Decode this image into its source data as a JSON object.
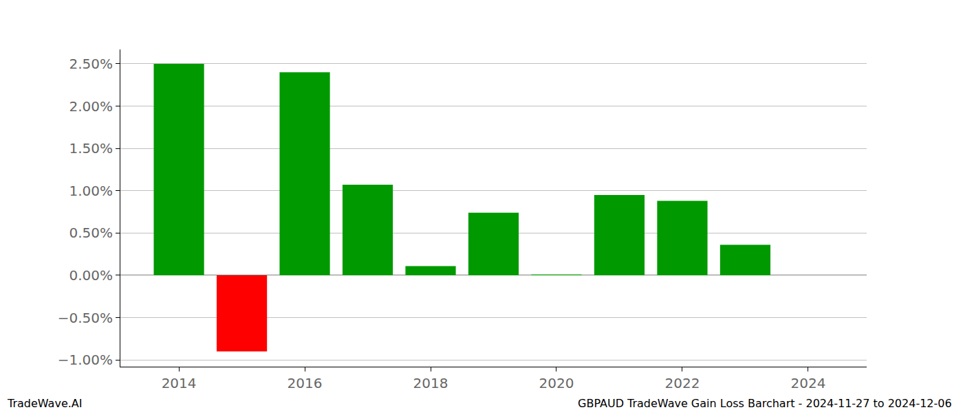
{
  "chart_data": {
    "type": "bar",
    "title": "GBPAUD TradeWave Gain Loss Barchart - 2024-11-27 to 2024-12-06",
    "annotations": [
      "TradeWave.AI"
    ],
    "x": [
      2014,
      2015,
      2016,
      2017,
      2018,
      2019,
      2020,
      2021,
      2022,
      2023
    ],
    "values": [
      2.5,
      -0.9,
      2.4,
      1.07,
      0.11,
      0.74,
      0.01,
      0.95,
      0.88,
      0.36
    ],
    "colors": [
      "#009900",
      "#ff0000",
      "#009900",
      "#009900",
      "#009900",
      "#009900",
      "#009900",
      "#009900",
      "#009900",
      "#009900"
    ],
    "xlim": [
      2013.07,
      2024.93
    ],
    "xticks": [
      2014,
      2016,
      2018,
      2020,
      2022,
      2024
    ],
    "ylim": [
      -1.08,
      2.67
    ],
    "yticks": [
      {
        "value": -1.0,
        "label": "−1.00%"
      },
      {
        "value": -0.5,
        "label": "−0.50%"
      },
      {
        "value": 0.0,
        "label": "0.00%"
      },
      {
        "value": 0.5,
        "label": "0.50%"
      },
      {
        "value": 1.0,
        "label": "1.00%"
      },
      {
        "value": 1.5,
        "label": "1.50%"
      },
      {
        "value": 2.0,
        "label": "2.00%"
      },
      {
        "value": 2.5,
        "label": "2.50%"
      }
    ],
    "grid": true
  }
}
